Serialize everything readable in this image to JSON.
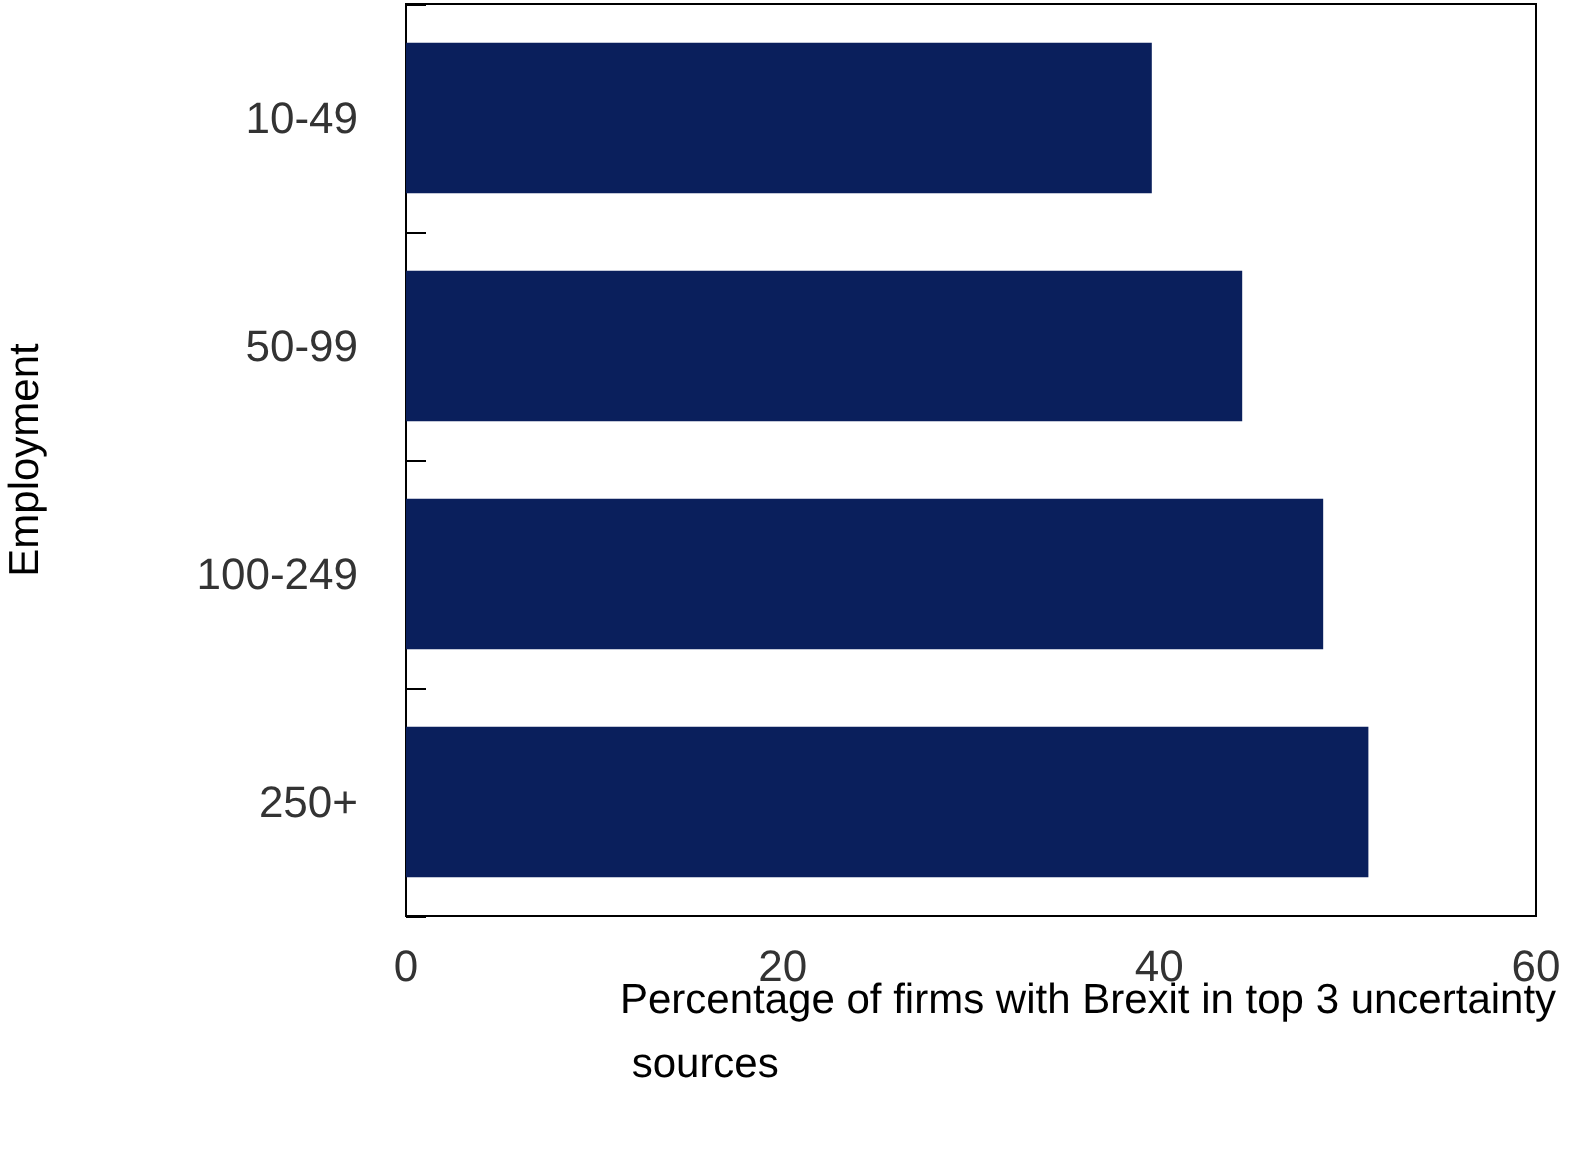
{
  "chart_data": {
    "type": "bar",
    "orientation": "horizontal",
    "categories": [
      "10-49",
      "50-99",
      "100-249",
      "250+"
    ],
    "values": [
      39.6,
      44.4,
      48.7,
      51.1
    ],
    "color": "#0a1f5c",
    "xlabel": "Percentage of firms with Brexit in top 3 uncertainty sources",
    "ylabel": "Employment",
    "xlim": [
      0,
      60
    ],
    "xticks": [
      0,
      20,
      40,
      60
    ],
    "grid": false
  }
}
